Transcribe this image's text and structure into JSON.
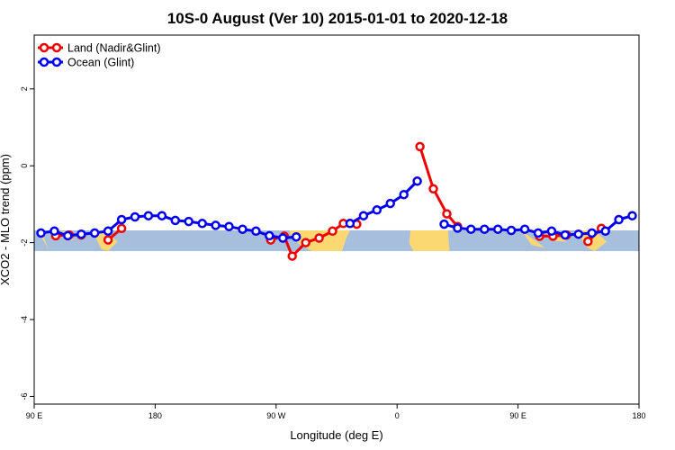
{
  "chart_data": {
    "type": "line",
    "title": "10S-0 August (Ver 10)   2015-01-01 to 2020-12-18",
    "xlabel": "Longitude (deg E)",
    "ylabel": "XCO2 - MLO trend (ppm)",
    "xlim": [
      90,
      540
    ],
    "ylim": [
      -6.2,
      3.4
    ],
    "x_ticks": [
      {
        "value": 90,
        "label": "90 E"
      },
      {
        "value": 180,
        "label": "180"
      },
      {
        "value": 270,
        "label": "90 W"
      },
      {
        "value": 360,
        "label": "0"
      },
      {
        "value": 450,
        "label": "90 E"
      },
      {
        "value": 540,
        "label": "180"
      }
    ],
    "y_ticks": [
      {
        "value": 2,
        "label": "2"
      },
      {
        "value": 0,
        "label": "0"
      },
      {
        "value": -2,
        "label": "-2"
      },
      {
        "value": -4,
        "label": "-4"
      },
      {
        "value": -6,
        "label": "-6"
      }
    ],
    "background_band": {
      "lat_range": "10S-0",
      "y_range": [
        -2.22,
        -1.68
      ],
      "ocean_color": "#a7bedd",
      "land_color": "#fbd872"
    },
    "legend": {
      "position": "top-left"
    },
    "series": [
      {
        "name": "Land (Nadir&Glint)",
        "color": "#ee0000",
        "segments": [
          {
            "x": [
              106,
              116,
              125
            ],
            "y": [
              -1.82,
              -1.8,
              -1.8
            ]
          },
          {
            "x": [
              145,
              155
            ],
            "y": [
              -1.93,
              -1.63
            ]
          },
          {
            "x": [
              266,
              276,
              282,
              292,
              302,
              312,
              320,
              330
            ],
            "y": [
              -1.93,
              -1.83,
              -2.35,
              -2.0,
              -1.88,
              -1.7,
              -1.5,
              -1.52
            ]
          },
          {
            "x": [
              377,
              387,
              397,
              405
            ],
            "y": [
              0.5,
              -0.6,
              -1.25,
              -1.58
            ]
          },
          {
            "x": [
              466,
              476,
              486
            ],
            "y": [
              -1.83,
              -1.83,
              -1.8
            ]
          },
          {
            "x": [
              502,
              512
            ],
            "y": [
              -1.97,
              -1.63
            ]
          }
        ]
      },
      {
        "name": "Ocean (Glint)",
        "color": "#0000ee",
        "segments": [
          {
            "x": [
              95,
              105,
              115,
              125,
              135,
              145,
              155,
              165,
              175,
              185,
              195,
              205,
              215,
              225,
              235,
              245,
              255,
              265,
              275,
              285
            ],
            "y": [
              -1.75,
              -1.7,
              -1.82,
              -1.78,
              -1.75,
              -1.7,
              -1.4,
              -1.33,
              -1.3,
              -1.3,
              -1.42,
              -1.45,
              -1.5,
              -1.55,
              -1.58,
              -1.65,
              -1.7,
              -1.82,
              -1.88,
              -1.85
            ]
          },
          {
            "x": [
              325,
              335,
              345,
              355,
              365,
              375
            ],
            "y": [
              -1.5,
              -1.3,
              -1.15,
              -0.98,
              -0.75,
              -0.4
            ]
          },
          {
            "x": [
              395,
              405,
              415,
              425,
              435,
              445,
              455,
              465,
              475,
              485,
              495,
              505,
              515,
              525,
              535
            ],
            "y": [
              -1.52,
              -1.62,
              -1.65,
              -1.65,
              -1.65,
              -1.68,
              -1.65,
              -1.75,
              -1.7,
              -1.8,
              -1.78,
              -1.75,
              -1.7,
              -1.4,
              -1.3
            ]
          }
        ]
      }
    ]
  }
}
